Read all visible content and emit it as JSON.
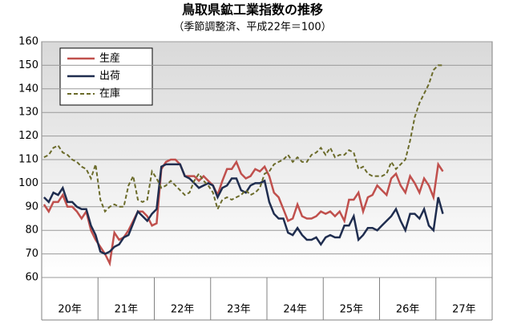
{
  "chart_data": {
    "type": "line",
    "title": "鳥取県鉱工業指数の推移",
    "subtitle": "（季節調整済、平成22年＝100）",
    "year_labels": [
      "20年",
      "21年",
      "22年",
      "23年",
      "24年",
      "25年",
      "26年",
      "27年"
    ],
    "ylim": [
      60,
      160
    ],
    "yticks": [
      60,
      70,
      80,
      90,
      100,
      110,
      120,
      130,
      140,
      150,
      160
    ],
    "grid": true,
    "legend": "upper left",
    "series": [
      {
        "name": "生産",
        "color": "#c0504d",
        "dash": false,
        "values": [
          91,
          88,
          92,
          92,
          95,
          90,
          90,
          88,
          85,
          88,
          80,
          76,
          73,
          70,
          66,
          79,
          76,
          77,
          80,
          84,
          88,
          88,
          86,
          82,
          83,
          106,
          109,
          110,
          110,
          108,
          103,
          103,
          103,
          101,
          103,
          101,
          99,
          95,
          101,
          106,
          106,
          109,
          104,
          102,
          103,
          106,
          105,
          107,
          103,
          96,
          94,
          89,
          84,
          85,
          91,
          86,
          85,
          85,
          86,
          88,
          87,
          88,
          86,
          88,
          84,
          93,
          93,
          96,
          88,
          94,
          95,
          99,
          97,
          95,
          102,
          104,
          99,
          96,
          103,
          100,
          96,
          102,
          99,
          94,
          108,
          105
        ]
      },
      {
        "name": "出荷",
        "color": "#1f2d4f",
        "dash": false,
        "values": [
          94,
          92,
          96,
          95,
          98,
          92,
          92,
          90,
          89,
          89,
          82,
          78,
          71,
          70,
          71,
          73,
          74,
          77,
          78,
          83,
          88,
          86,
          84,
          87,
          89,
          107,
          108,
          108,
          108,
          108,
          103,
          102,
          100,
          98,
          99,
          100,
          99,
          94,
          98,
          99,
          102,
          102,
          97,
          96,
          99,
          100,
          100,
          101,
          92,
          87,
          85,
          85,
          79,
          78,
          81,
          78,
          76,
          76,
          77,
          74,
          77,
          78,
          77,
          77,
          82,
          82,
          86,
          76,
          78,
          81,
          81,
          80,
          82,
          84,
          86,
          89,
          84,
          80,
          87,
          87,
          85,
          89,
          82,
          80,
          94,
          87
        ]
      },
      {
        "name": "在庫",
        "color": "#6b6b2a",
        "dash": true,
        "values": [
          111,
          112,
          115,
          116,
          113,
          112,
          110,
          109,
          107,
          106,
          102,
          108,
          93,
          88,
          90,
          91,
          90,
          90,
          99,
          103,
          93,
          92,
          93,
          105,
          102,
          98,
          99,
          101,
          99,
          97,
          95,
          96,
          101,
          104,
          101,
          99,
          96,
          89,
          93,
          94,
          93,
          94,
          95,
          97,
          95,
          96,
          98,
          104,
          105,
          108,
          109,
          110,
          112,
          109,
          111,
          109,
          109,
          112,
          113,
          115,
          112,
          115,
          111,
          112,
          112,
          114,
          113,
          106,
          107,
          104,
          103,
          103,
          103,
          104,
          109,
          106,
          108,
          110,
          118,
          128,
          134,
          138,
          142,
          148,
          150,
          150
        ]
      }
    ]
  }
}
